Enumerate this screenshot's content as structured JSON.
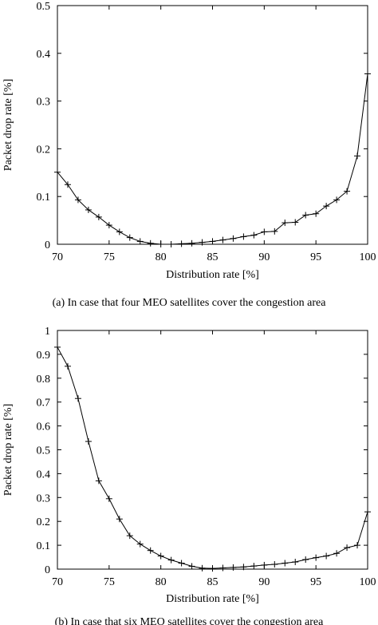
{
  "chart_data": [
    {
      "type": "line",
      "panel": 1,
      "caption": "(a) In case that four MEO satellites cover the congestion area",
      "xlabel": "Distribution rate [%]",
      "ylabel": "Packet drop rate [%]",
      "xlim": [
        70,
        100
      ],
      "ylim": [
        0,
        0.5
      ],
      "xticks": [
        "70",
        "75",
        "80",
        "85",
        "90",
        "95",
        "100"
      ],
      "xtick_values": [
        70,
        75,
        80,
        85,
        90,
        95,
        100
      ],
      "yticks": [
        "0",
        "0.1",
        "0.2",
        "0.3",
        "0.4",
        "0.5"
      ],
      "ytick_values": [
        0,
        0.1,
        0.2,
        0.3,
        0.4,
        0.5
      ],
      "grid": false,
      "marker": "plus",
      "series": [
        {
          "x": [
            70,
            71,
            72,
            73,
            74,
            75,
            76,
            77,
            78,
            79,
            80,
            81,
            82,
            83,
            84,
            85,
            86,
            87,
            88,
            89,
            90,
            91,
            92,
            93,
            94,
            95,
            96,
            97,
            98,
            99,
            100
          ],
          "values": [
            0.151,
            0.125,
            0.093,
            0.072,
            0.057,
            0.04,
            0.026,
            0.014,
            0.006,
            0.002,
            0.0,
            0.0,
            0.001,
            0.002,
            0.004,
            0.006,
            0.009,
            0.012,
            0.016,
            0.019,
            0.026,
            0.027,
            0.045,
            0.046,
            0.061,
            0.064,
            0.08,
            0.093,
            0.111,
            0.185,
            0.357
          ]
        }
      ]
    },
    {
      "type": "line",
      "panel": 2,
      "caption": "(b) In case that six MEO satellites cover the congestion area",
      "xlabel": "Distribution rate [%]",
      "ylabel": "Packet drop rate [%]",
      "xlim": [
        70,
        100
      ],
      "ylim": [
        0,
        1
      ],
      "xticks": [
        "70",
        "75",
        "80",
        "85",
        "90",
        "95",
        "100"
      ],
      "xtick_values": [
        70,
        75,
        80,
        85,
        90,
        95,
        100
      ],
      "yticks": [
        "0",
        "0.1",
        "0.2",
        "0.3",
        "0.4",
        "0.5",
        "0.6",
        "0.7",
        "0.8",
        "0.9",
        "1"
      ],
      "ytick_values": [
        0,
        0.1,
        0.2,
        0.3,
        0.4,
        0.5,
        0.6,
        0.7,
        0.8,
        0.9,
        1
      ],
      "grid": false,
      "marker": "plus",
      "series": [
        {
          "x": [
            70,
            71,
            72,
            73,
            74,
            75,
            76,
            77,
            78,
            79,
            80,
            81,
            82,
            83,
            84,
            85,
            86,
            87,
            88,
            89,
            90,
            91,
            92,
            93,
            94,
            95,
            96,
            97,
            98,
            99,
            100
          ],
          "values": [
            0.93,
            0.85,
            0.715,
            0.535,
            0.37,
            0.295,
            0.21,
            0.14,
            0.105,
            0.078,
            0.055,
            0.038,
            0.025,
            0.012,
            0.004,
            0.003,
            0.005,
            0.007,
            0.009,
            0.013,
            0.017,
            0.02,
            0.025,
            0.03,
            0.04,
            0.048,
            0.055,
            0.066,
            0.09,
            0.1,
            0.24
          ]
        }
      ]
    }
  ]
}
